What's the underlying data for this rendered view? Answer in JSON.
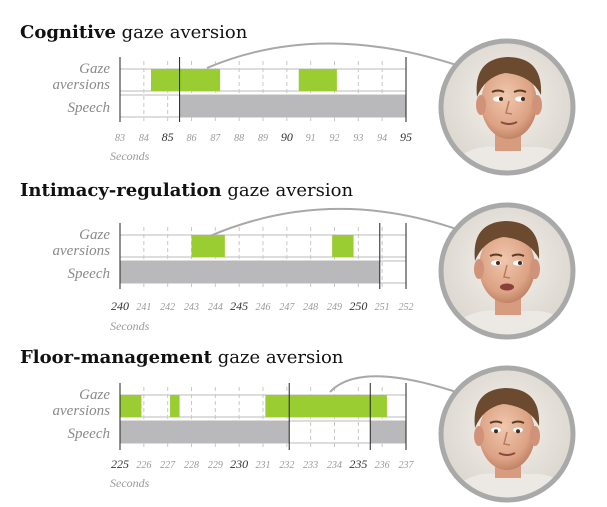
{
  "colors": {
    "gaze_fill": "#9acd32",
    "speech_fill": "#b9b9bb",
    "axis_line": "#222222",
    "grid_dash": "#c8c8c8",
    "track_border": "#bbbbbb",
    "callout_line": "#a8a8a8",
    "photo_ring": "#a9a9a9"
  },
  "panels": [
    {
      "title_bold": "Cognitive",
      "title_rest": " gaze aversion",
      "row_labels": {
        "gaze_line1": "Gaze",
        "gaze_line2": "aversions",
        "speech": "Speech"
      },
      "axis_unit": "Seconds",
      "ticks": [
        "83",
        "84",
        "85",
        "86",
        "87",
        "88",
        "89",
        "90",
        "91",
        "92",
        "93",
        "94",
        "95"
      ],
      "major_ticks": [
        "85",
        "90",
        "95"
      ],
      "gaze_aversions": [
        {
          "start": 84.3,
          "end": 87.2
        },
        {
          "start": 90.5,
          "end": 92.1
        }
      ],
      "speech": [
        {
          "start": 85.5,
          "end": 95.0
        }
      ],
      "photo": "face-thinking"
    },
    {
      "title_bold": "Intimacy-regulation",
      "title_rest": " gaze aversion",
      "row_labels": {
        "gaze_line1": "Gaze",
        "gaze_line2": "aversions",
        "speech": "Speech"
      },
      "axis_unit": "Seconds",
      "ticks": [
        "240",
        "241",
        "242",
        "243",
        "244",
        "245",
        "246",
        "247",
        "248",
        "249",
        "250",
        "251",
        "252"
      ],
      "major_ticks": [
        "240",
        "245",
        "250"
      ],
      "gaze_aversions": [
        {
          "start": 243.0,
          "end": 244.4
        },
        {
          "start": 248.9,
          "end": 249.8
        }
      ],
      "speech": [
        {
          "start": 240.0,
          "end": 250.9
        }
      ],
      "photo": "face-speaking"
    },
    {
      "title_bold": "Floor-management",
      "title_rest": " gaze aversion",
      "row_labels": {
        "gaze_line1": "Gaze",
        "gaze_line2": "aversions",
        "speech": "Speech"
      },
      "axis_unit": "Seconds",
      "ticks": [
        "225",
        "226",
        "227",
        "228",
        "229",
        "230",
        "231",
        "232",
        "233",
        "234",
        "235",
        "236",
        "237"
      ],
      "major_ticks": [
        "225",
        "230",
        "235"
      ],
      "gaze_aversions": [
        {
          "start": 225.0,
          "end": 225.9
        },
        {
          "start": 227.1,
          "end": 227.5
        },
        {
          "start": 231.1,
          "end": 236.2
        }
      ],
      "speech": [
        {
          "start": 225.0,
          "end": 232.1
        },
        {
          "start": 235.5,
          "end": 237.0
        }
      ],
      "photo": "face-looking-down"
    }
  ]
}
